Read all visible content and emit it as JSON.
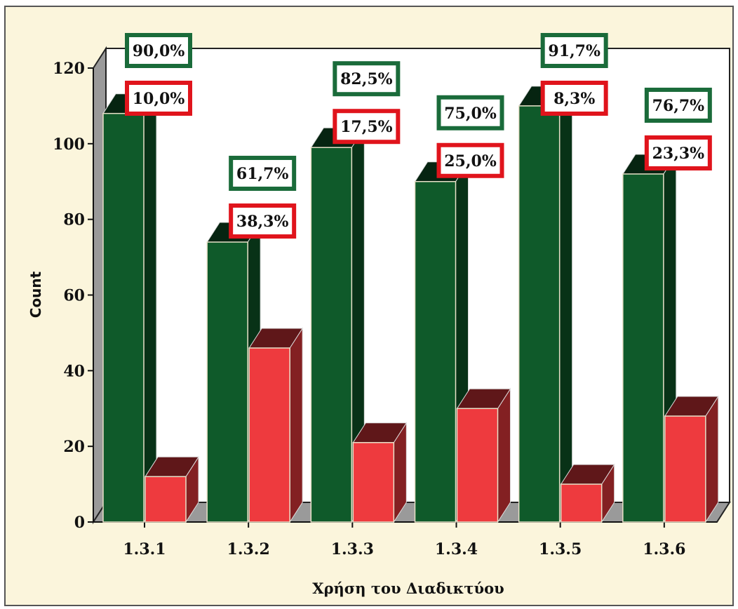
{
  "colors": {
    "background": "#fbf5dc",
    "plot_back": "#ffffff",
    "series_green": "#0f5a2a",
    "series_red": "#ee3a3e",
    "box_green": "#1a6b3a",
    "box_red": "#e0141c"
  },
  "chart_data": {
    "type": "bar",
    "style": "3d-clustered",
    "title": "",
    "xlabel": "Χρήση του Διαδικτύου",
    "ylabel": "Count",
    "ylim": [
      0,
      120
    ],
    "yticks": [
      0,
      20,
      40,
      60,
      80,
      100,
      120
    ],
    "categories": [
      "1.3.1",
      "1.3.2",
      "1.3.3",
      "1.3.4",
      "1.3.5",
      "1.3.6"
    ],
    "series": [
      {
        "color": "#0f5a2a",
        "values": [
          108,
          74,
          99,
          90,
          110,
          92
        ],
        "labels": [
          "90,0%",
          "61,7%",
          "82,5%",
          "75,0%",
          "91,7%",
          "76,7%"
        ]
      },
      {
        "color": "#ee3a3e",
        "values": [
          12,
          46,
          21,
          30,
          10,
          28
        ],
        "labels": [
          "10,0%",
          "38,3%",
          "17,5%",
          "25,0%",
          "8,3%",
          "23,3%"
        ]
      }
    ],
    "legend": "none",
    "grid": false
  }
}
